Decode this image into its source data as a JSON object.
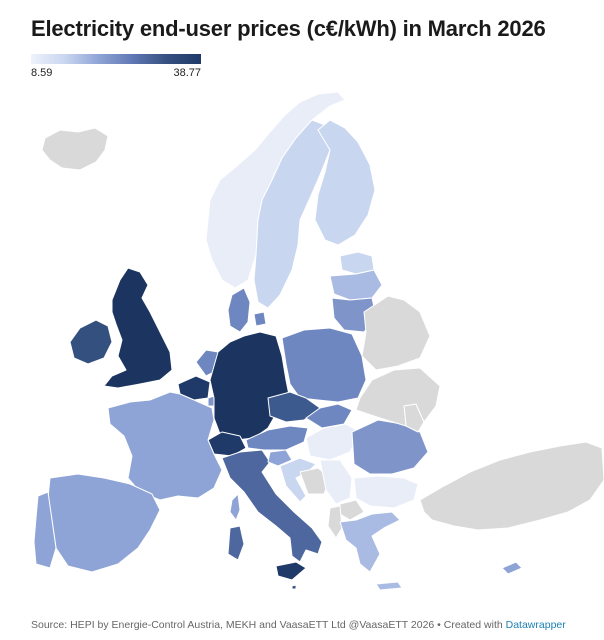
{
  "title": "Electricity end-user prices (c€/kWh) in March 2026",
  "legend": {
    "min_label": "8.59",
    "max_label": "38.77"
  },
  "footer": {
    "source": "Source: HEPI by Energie-Control Austria, MEKH and VaasaETT Ltd @VaasaETT 2026 • Created with ",
    "link_text": "Datawrapper"
  },
  "colors": {
    "no_data": "#d9d9d9",
    "scale_low": "#eef2fb",
    "scale_high": "#1f3a68",
    "border": "#ffffff"
  },
  "countries": [
    {
      "name": "Iceland",
      "shade": "no-data"
    },
    {
      "name": "Norway",
      "shade": "very-light"
    },
    {
      "name": "Sweden",
      "shade": "light"
    },
    {
      "name": "Finland",
      "shade": "light"
    },
    {
      "name": "Estonia",
      "shade": "light"
    },
    {
      "name": "Latvia",
      "shade": "light"
    },
    {
      "name": "Lithuania",
      "shade": "medium"
    },
    {
      "name": "Denmark",
      "shade": "medium"
    },
    {
      "name": "Ireland",
      "shade": "dark"
    },
    {
      "name": "United Kingdom",
      "shade": "darkest"
    },
    {
      "name": "Netherlands",
      "shade": "medium"
    },
    {
      "name": "Belgium",
      "shade": "darkest"
    },
    {
      "name": "Luxembourg",
      "shade": "medium"
    },
    {
      "name": "Germany",
      "shade": "darkest"
    },
    {
      "name": "Poland",
      "shade": "medium"
    },
    {
      "name": "Czechia",
      "shade": "dark"
    },
    {
      "name": "Slovakia",
      "shade": "medium"
    },
    {
      "name": "Austria",
      "shade": "medium"
    },
    {
      "name": "Hungary",
      "shade": "very-light"
    },
    {
      "name": "Switzerland",
      "shade": "darkest"
    },
    {
      "name": "France",
      "shade": "medium-light"
    },
    {
      "name": "Spain",
      "shade": "medium-light"
    },
    {
      "name": "Portugal",
      "shade": "medium-light"
    },
    {
      "name": "Italy",
      "shade": "dark"
    },
    {
      "name": "Slovenia",
      "shade": "medium-light"
    },
    {
      "name": "Croatia",
      "shade": "light"
    },
    {
      "name": "Romania",
      "shade": "medium"
    },
    {
      "name": "Bulgaria",
      "shade": "very-light"
    },
    {
      "name": "Serbia",
      "shade": "very-light"
    },
    {
      "name": "Greece",
      "shade": "light"
    },
    {
      "name": "Cyprus",
      "shade": "medium-light"
    },
    {
      "name": "Malta",
      "shade": "dark"
    },
    {
      "name": "Belarus",
      "shade": "no-data"
    },
    {
      "name": "Ukraine",
      "shade": "no-data"
    },
    {
      "name": "Moldova",
      "shade": "no-data"
    },
    {
      "name": "Turkey",
      "shade": "no-data"
    },
    {
      "name": "Bosnia",
      "shade": "no-data"
    },
    {
      "name": "Albania",
      "shade": "no-data"
    },
    {
      "name": "North Macedonia",
      "shade": "no-data"
    }
  ]
}
